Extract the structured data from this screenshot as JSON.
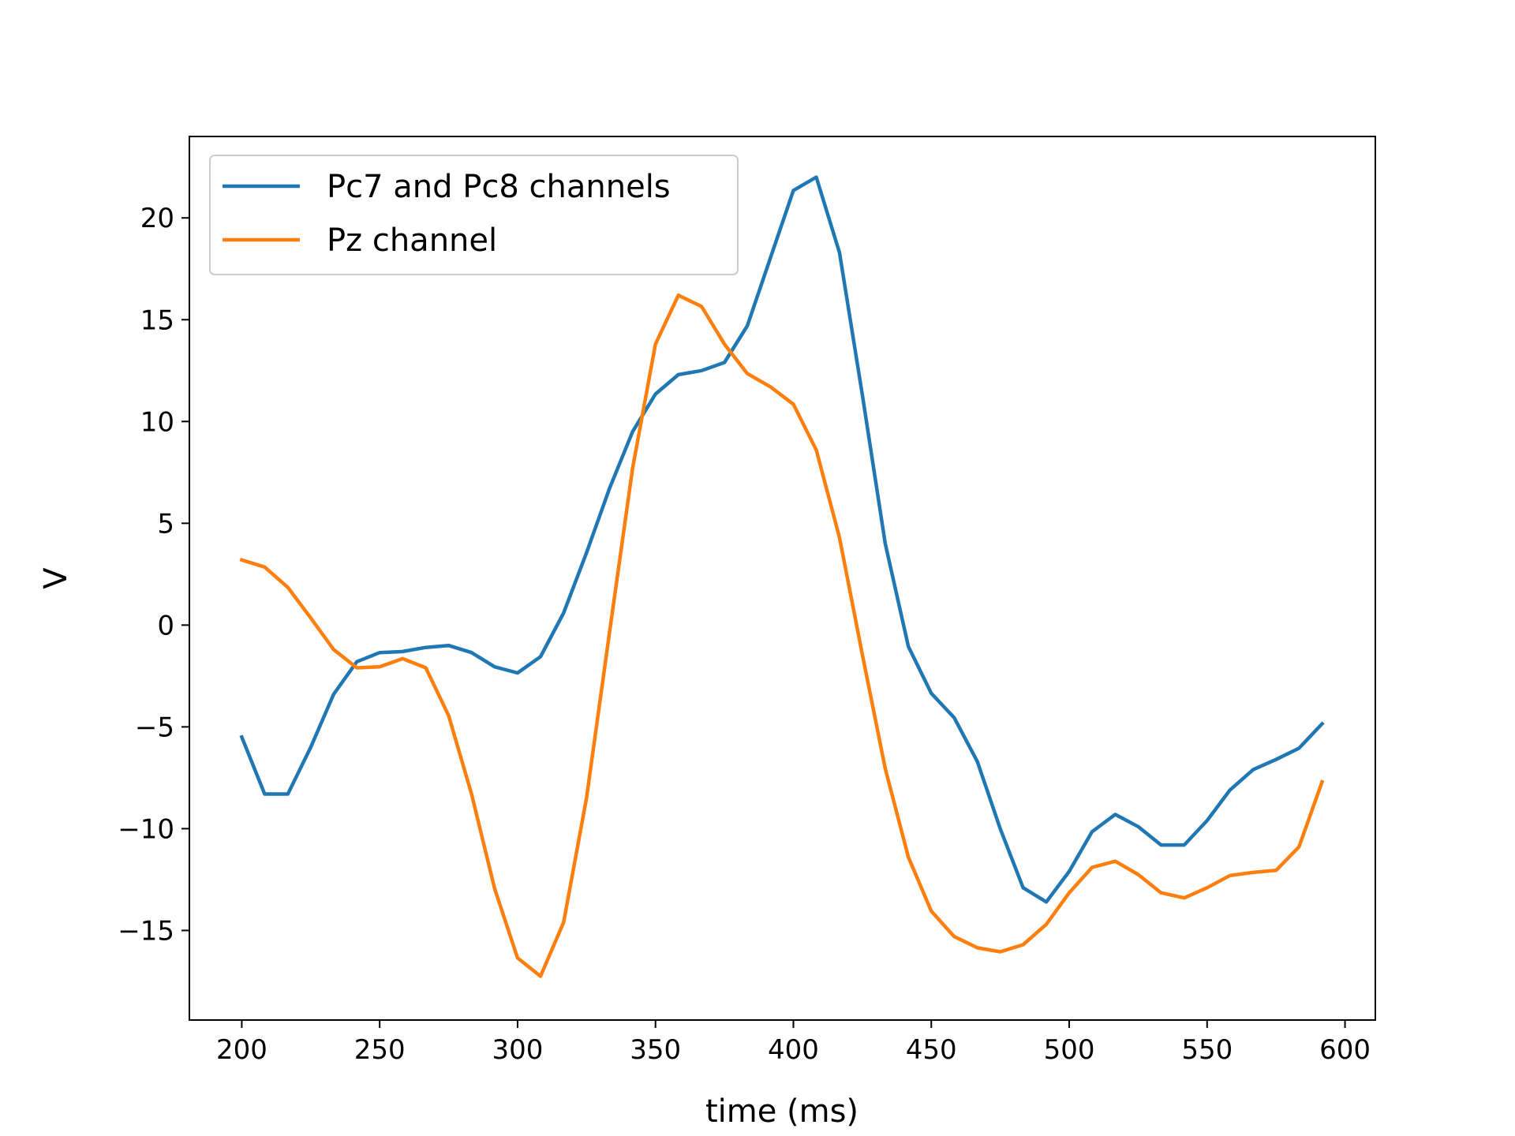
{
  "chart_data": {
    "type": "line",
    "title": "",
    "xlabel": "time (ms)",
    "ylabel": "V",
    "xlim": [
      181,
      611
    ],
    "ylim": [
      -19.4,
      24.0
    ],
    "xticks": [
      200,
      250,
      300,
      350,
      400,
      450,
      500,
      550,
      600
    ],
    "yticks": [
      -15,
      -10,
      -5,
      0,
      5,
      10,
      15,
      20
    ],
    "ytick_labels": [
      "−15",
      "−10",
      "−5",
      "0",
      "5",
      "10",
      "15",
      "20"
    ],
    "grid": false,
    "legend_position": "top-left",
    "x": [
      200,
      208.3,
      216.7,
      225,
      233.3,
      241.7,
      250,
      258.3,
      266.7,
      275,
      283.3,
      291.7,
      300,
      308.3,
      316.7,
      325,
      333.3,
      341.7,
      350,
      358.3,
      366.7,
      375,
      383.3,
      391.7,
      400,
      408.3,
      416.7,
      425,
      433.3,
      441.7,
      450,
      458.3,
      466.7,
      475,
      483.3,
      491.7,
      500,
      508.3,
      516.7,
      525,
      533.3,
      541.7,
      550,
      558.3,
      566.7,
      575,
      583.3,
      591.7
    ],
    "series": [
      {
        "name": "Pc7 and Pc8 channels",
        "color": "#1f77b4",
        "values": [
          -5.5,
          -8.3,
          -8.3,
          -6.0,
          -3.4,
          -1.8,
          -1.35,
          -1.3,
          -1.1,
          -1.0,
          -1.35,
          -2.05,
          -2.35,
          -1.55,
          0.6,
          3.55,
          6.7,
          9.5,
          11.35,
          12.3,
          12.5,
          12.9,
          14.7,
          18.05,
          21.35,
          22.0,
          18.3,
          11.3,
          4.0,
          -1.05,
          -3.35,
          -4.55,
          -6.7,
          -10.0,
          -12.9,
          -13.6,
          -12.1,
          -10.15,
          -9.3,
          -9.9,
          -10.8,
          -10.8,
          -9.6,
          -8.1,
          -7.1,
          -6.6,
          -6.05,
          -4.85
        ]
      },
      {
        "name": "Pz channel",
        "color": "#ff7f0e",
        "values": [
          3.2,
          2.85,
          1.85,
          0.35,
          -1.2,
          -2.1,
          -2.05,
          -1.65,
          -2.1,
          -4.45,
          -8.3,
          -12.95,
          -16.35,
          -17.25,
          -14.6,
          -8.5,
          -0.4,
          7.7,
          13.8,
          16.2,
          15.65,
          13.8,
          12.35,
          11.7,
          10.85,
          8.6,
          4.3,
          -1.45,
          -7.05,
          -11.4,
          -14.05,
          -15.3,
          -15.85,
          -16.05,
          -15.7,
          -14.7,
          -13.15,
          -11.9,
          -11.6,
          -12.25,
          -13.15,
          -13.4,
          -12.9,
          -12.3,
          -12.15,
          -12.05,
          -10.9,
          -7.7
        ]
      }
    ]
  }
}
